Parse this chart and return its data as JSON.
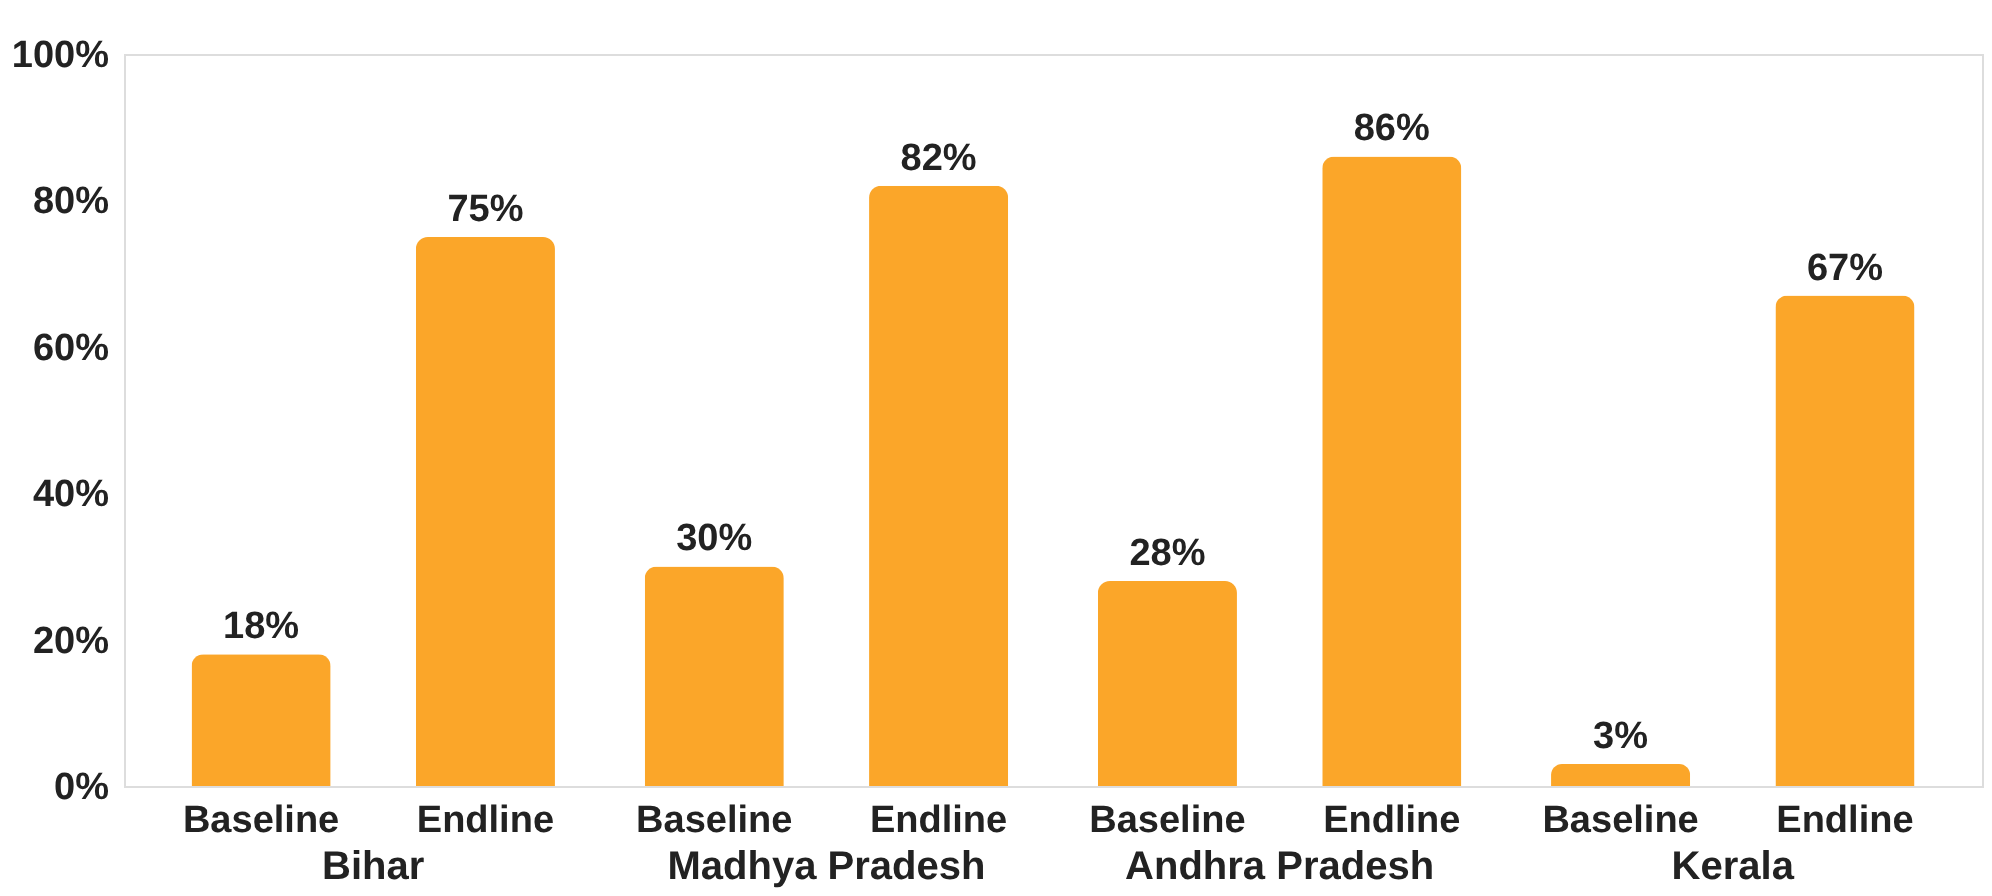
{
  "chart_data": {
    "type": "bar",
    "categories": [
      "Bihar",
      "Madhya Pradesh",
      "Andhra Pradesh",
      "Kerala"
    ],
    "series": [
      {
        "name": "Baseline",
        "color": "#fba629",
        "values": [
          18,
          30,
          28,
          3
        ],
        "value_labels": [
          "18%",
          "30%",
          "28%",
          "3%"
        ]
      },
      {
        "name": "Endline",
        "color": "#fba629",
        "values": [
          75,
          82,
          86,
          67
        ],
        "value_labels": [
          "75%",
          "82%",
          "86%",
          "67%"
        ]
      }
    ],
    "ylim": [
      0,
      100
    ],
    "yticks": [
      {
        "value": 0,
        "label": "0%"
      },
      {
        "value": 20,
        "label": "20%"
      },
      {
        "value": 40,
        "label": "40%"
      },
      {
        "value": 60,
        "label": "60%"
      },
      {
        "value": 80,
        "label": "80%"
      },
      {
        "value": 100,
        "label": "100%"
      }
    ],
    "grid": false,
    "legend": false
  }
}
